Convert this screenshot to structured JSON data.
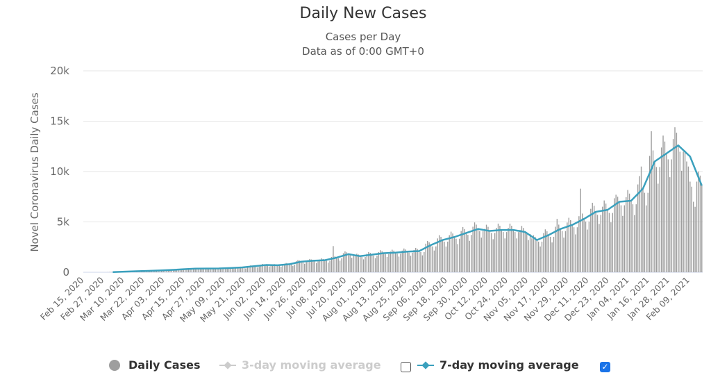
{
  "chart_data": {
    "type": "bar",
    "title": "Daily New Cases",
    "subtitle": "Cases per Day",
    "subtitle2": "Data as of 0:00 GMT+0",
    "ylabel": "Novel Coronavirus Daily Cases",
    "xlabel": "",
    "ylim": [
      0,
      20000
    ],
    "yticks": [
      0,
      5000,
      10000,
      15000,
      20000
    ],
    "ytick_labels": [
      "0",
      "5k",
      "10k",
      "15k",
      "20k"
    ],
    "grid": true,
    "start_date": "Feb 15, 2020",
    "x_tick_every_days": 12,
    "x_tick_labels": [
      "Feb 15, 2020",
      "Feb 27, 2020",
      "Mar 10, 2020",
      "Mar 22, 2020",
      "Apr 03, 2020",
      "Apr 15, 2020",
      "Apr 27, 2020",
      "May 09, 2020",
      "May 21, 2020",
      "Jun 02, 2020",
      "Jun 14, 2020",
      "Jun 26, 2020",
      "Jul 08, 2020",
      "Jul 20, 2020",
      "Aug 01, 2020",
      "Aug 13, 2020",
      "Aug 25, 2020",
      "Sep 06, 2020",
      "Sep 18, 2020",
      "Sep 30, 2020",
      "Oct 12, 2020",
      "Oct 24, 2020",
      "Nov 05, 2020",
      "Nov 17, 2020",
      "Nov 29, 2020",
      "Dec 11, 2020",
      "Dec 23, 2020",
      "Jan 04, 2021",
      "Jan 16, 2021",
      "Jan 28, 2021",
      "Feb 09, 2021"
    ],
    "series": [
      {
        "name": "Daily Cases",
        "type": "bar",
        "color": "#9e9e9e",
        "values": [
          0,
          0,
          0,
          0,
          0,
          0,
          0,
          0,
          0,
          0,
          0,
          0,
          0,
          0,
          10,
          20,
          30,
          20,
          20,
          20,
          20,
          60,
          70,
          70,
          60,
          60,
          50,
          60,
          110,
          120,
          110,
          100,
          90,
          80,
          100,
          150,
          160,
          150,
          140,
          130,
          110,
          130,
          190,
          210,
          200,
          180,
          170,
          140,
          170,
          240,
          260,
          250,
          230,
          220,
          180,
          220,
          320,
          350,
          330,
          300,
          290,
          240,
          290,
          380,
          410,
          400,
          360,
          340,
          290,
          340,
          390,
          430,
          410,
          370,
          350,
          300,
          350,
          400,
          440,
          420,
          380,
          360,
          300,
          360,
          440,
          480,
          460,
          420,
          400,
          340,
          400,
          500,
          550,
          530,
          480,
          460,
          380,
          460,
          630,
          690,
          660,
          600,
          570,
          480,
          570,
          760,
          830,
          790,
          720,
          680,
          580,
          680,
          740,
          810,
          770,
          700,
          670,
          560,
          670,
          840,
          920,
          880,
          800,
          760,
          640,
          760,
          1100,
          1210,
          1160,
          1050,
          1000,
          840,
          1000,
          1210,
          1320,
          1270,
          1150,
          1090,
          920,
          1090,
          1260,
          1380,
          1320,
          1200,
          1140,
          960,
          1140,
          1520,
          2600,
          1600,
          1450,
          1380,
          1160,
          1380,
          1890,
          2070,
          1980,
          1800,
          1710,
          1440,
          1710,
          1680,
          1840,
          1760,
          1600,
          1520,
          1280,
          1520,
          1840,
          2010,
          1930,
          1750,
          1660,
          1400,
          1660,
          2000,
          2190,
          2090,
          1900,
          1810,
          1520,
          1800,
          2050,
          2240,
          2150,
          1950,
          1850,
          1560,
          1850,
          2150,
          2360,
          2260,
          2050,
          1950,
          1640,
          1950,
          2210,
          2420,
          2310,
          2100,
          2000,
          1680,
          2000,
          2840,
          3110,
          2970,
          2700,
          2570,
          2160,
          2570,
          3360,
          3680,
          3520,
          3200,
          3040,
          2560,
          3040,
          3680,
          4030,
          3850,
          3500,
          3330,
          2800,
          3330,
          4100,
          4490,
          4290,
          3900,
          3710,
          3120,
          3710,
          4520,
          4950,
          4730,
          4300,
          4090,
          3440,
          4090,
          4310,
          4720,
          4510,
          4100,
          3900,
          3280,
          3900,
          4410,
          4830,
          4620,
          4200,
          3990,
          3360,
          3990,
          4410,
          4830,
          4620,
          4200,
          3990,
          3360,
          3990,
          4200,
          4600,
          4400,
          4000,
          3800,
          3200,
          3800,
          3360,
          3680,
          3520,
          3200,
          3040,
          2560,
          3040,
          3890,
          4260,
          4070,
          3700,
          3520,
          2960,
          3520,
          4520,
          5300,
          4730,
          4300,
          4090,
          3440,
          4090,
          4940,
          5410,
          5170,
          4700,
          4470,
          3760,
          4470,
          5570,
          8300,
          5830,
          5300,
          5040,
          4240,
          5040,
          6300,
          6900,
          6600,
          6000,
          5700,
          4800,
          5700,
          6510,
          7130,
          6820,
          6200,
          5890,
          4960,
          5890,
          7350,
          7700,
          7500,
          7000,
          6650,
          5600,
          6650,
          7460,
          8170,
          7810,
          7100,
          6750,
          5680,
          6750,
          8720,
          9550,
          10500,
          8300,
          7890,
          6640,
          7890,
          11550,
          14000,
          12100,
          11000,
          10450,
          8800,
          10450,
          12390,
          13570,
          12980,
          11800,
          11210,
          9440,
          11210,
          13230,
          14400,
          13860,
          12600,
          11970,
          10080,
          11970,
          12080,
          11000,
          10500,
          9000,
          8500,
          7000,
          6500,
          9000,
          10000,
          9600,
          8600
        ]
      },
      {
        "name": "7-day moving average",
        "type": "line",
        "color": "#3aa0bd",
        "sampled_every_days": 7,
        "values": [
          null,
          null,
          20,
          60,
          100,
          140,
          180,
          230,
          300,
          360,
          370,
          380,
          420,
          480,
          600,
          720,
          700,
          800,
          1050,
          1150,
          1200,
          1450,
          1800,
          1600,
          1750,
          1900,
          1950,
          2050,
          2100,
          2700,
          3200,
          3500,
          3900,
          4300,
          4100,
          4200,
          4200,
          4000,
          3200,
          3700,
          4300,
          4700,
          5300,
          6000,
          6200,
          7000,
          7100,
          8300,
          11000,
          11800,
          12600,
          11500,
          8600
        ]
      }
    ],
    "legend": {
      "placement": "bottom",
      "items": [
        {
          "label": "Daily Cases",
          "active": true
        },
        {
          "label": "3-day moving average",
          "active": false,
          "checked": false
        },
        {
          "label": "7-day moving average",
          "active": true,
          "checked": true
        }
      ]
    }
  }
}
